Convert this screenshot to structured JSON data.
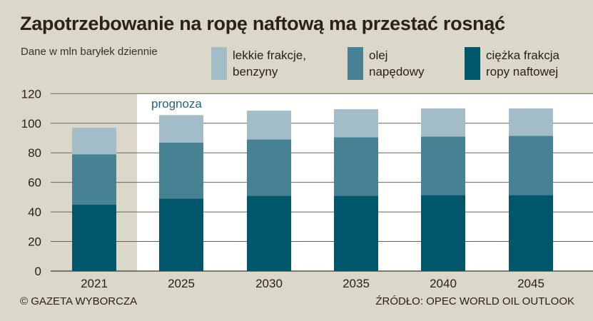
{
  "chart_data": {
    "type": "bar",
    "stacked": true,
    "title": "Zapotrzebowanie na ropę naftową ma przestać rosnąć",
    "subtitle": "Dane w mln baryłek dziennie",
    "categories": [
      "2021",
      "2025",
      "2030",
      "2035",
      "2040",
      "2045"
    ],
    "series": [
      {
        "name": "ciężka frakcja ropy naftowej",
        "color": "#00566b",
        "values": [
          45,
          49,
          51,
          51,
          51.5,
          51.5
        ]
      },
      {
        "name": "olej napędowy",
        "color": "#478294",
        "values": [
          34,
          38,
          38,
          39.5,
          39.5,
          40
        ]
      },
      {
        "name": "lekkie frakcje, benzyny",
        "color": "#a2bcc8",
        "values": [
          18,
          18.5,
          19.5,
          19,
          19,
          18.5
        ]
      }
    ],
    "ylim": [
      0,
      120
    ],
    "yticks": [
      0,
      20,
      40,
      60,
      80,
      100,
      120
    ],
    "grid": true,
    "annotation": "prognoza",
    "legend_position": "top-right"
  },
  "legend": [
    {
      "line1": "lekkie frakcje,",
      "line2": "benzyny",
      "color": "#a2bcc8"
    },
    {
      "line1": "olej",
      "line2": "napędowy",
      "color": "#478294"
    },
    {
      "line1": "ciężka frakcja",
      "line2": "ropy naftowej",
      "color": "#00566b"
    }
  ],
  "footer": {
    "credit": "© GAZETA WYBORCZA",
    "source": "ŹRÓDŁO: OPEC WORLD OIL OUTLOOK"
  }
}
